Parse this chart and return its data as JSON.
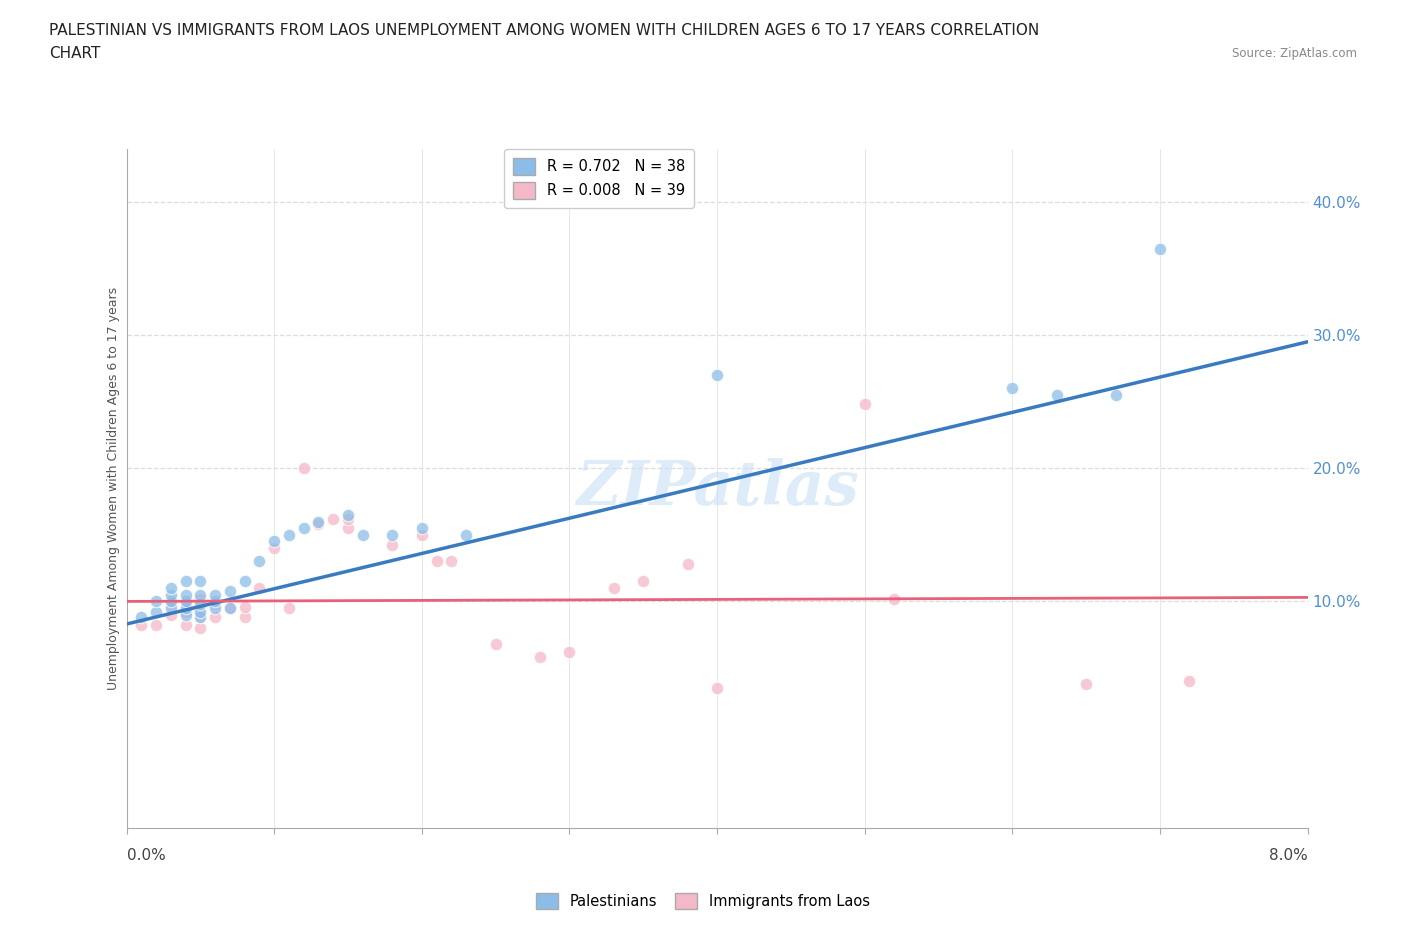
{
  "title_line1": "PALESTINIAN VS IMMIGRANTS FROM LAOS UNEMPLOYMENT AMONG WOMEN WITH CHILDREN AGES 6 TO 17 YEARS CORRELATION",
  "title_line2": "CHART",
  "source": "Source: ZipAtlas.com",
  "xlabel_start": "0.0%",
  "xlabel_end": "8.0%",
  "ylabel": "Unemployment Among Women with Children Ages 6 to 17 years",
  "ytick_labels": [
    "10.0%",
    "20.0%",
    "30.0%",
    "40.0%"
  ],
  "ytick_values": [
    0.1,
    0.2,
    0.3,
    0.4
  ],
  "xlim": [
    0.0,
    0.08
  ],
  "ylim": [
    -0.07,
    0.44
  ],
  "legend_blue_label": "R = 0.702   N = 38",
  "legend_pink_label": "R = 0.008   N = 39",
  "legend_blue_scatter_label": "Palestinians",
  "legend_pink_scatter_label": "Immigrants from Laos",
  "blue_color": "#8bbde8",
  "pink_color": "#f5b8c8",
  "trend_blue_color": "#3a7bbf",
  "trend_pink_color": "#e8607a",
  "ytick_color": "#5090d0",
  "watermark_text": "ZIPatlas",
  "blue_scatter_x": [
    0.001,
    0.002,
    0.002,
    0.003,
    0.003,
    0.003,
    0.003,
    0.004,
    0.004,
    0.004,
    0.004,
    0.004,
    0.005,
    0.005,
    0.005,
    0.005,
    0.005,
    0.006,
    0.006,
    0.006,
    0.007,
    0.007,
    0.008,
    0.009,
    0.01,
    0.011,
    0.012,
    0.013,
    0.015,
    0.016,
    0.018,
    0.02,
    0.023,
    0.04,
    0.06,
    0.063,
    0.067,
    0.07
  ],
  "blue_scatter_y": [
    0.088,
    0.092,
    0.1,
    0.095,
    0.1,
    0.105,
    0.11,
    0.09,
    0.095,
    0.1,
    0.105,
    0.115,
    0.088,
    0.092,
    0.098,
    0.105,
    0.115,
    0.095,
    0.1,
    0.105,
    0.095,
    0.108,
    0.115,
    0.13,
    0.145,
    0.15,
    0.155,
    0.16,
    0.165,
    0.15,
    0.15,
    0.155,
    0.15,
    0.27,
    0.26,
    0.255,
    0.255,
    0.365
  ],
  "pink_scatter_x": [
    0.001,
    0.002,
    0.003,
    0.003,
    0.004,
    0.004,
    0.004,
    0.005,
    0.005,
    0.005,
    0.005,
    0.006,
    0.006,
    0.007,
    0.008,
    0.008,
    0.009,
    0.01,
    0.011,
    0.012,
    0.013,
    0.014,
    0.015,
    0.015,
    0.018,
    0.02,
    0.021,
    0.022,
    0.025,
    0.028,
    0.03,
    0.033,
    0.035,
    0.038,
    0.04,
    0.05,
    0.052,
    0.065,
    0.072
  ],
  "pink_scatter_y": [
    0.082,
    0.082,
    0.09,
    0.098,
    0.082,
    0.092,
    0.098,
    0.08,
    0.088,
    0.095,
    0.102,
    0.088,
    0.098,
    0.095,
    0.088,
    0.096,
    0.11,
    0.14,
    0.095,
    0.2,
    0.158,
    0.162,
    0.155,
    0.162,
    0.142,
    0.15,
    0.13,
    0.13,
    0.068,
    0.058,
    0.062,
    0.11,
    0.115,
    0.128,
    0.035,
    0.248,
    0.102,
    0.038,
    0.04
  ],
  "blue_trend_x": [
    0.0,
    0.08
  ],
  "blue_trend_y": [
    0.083,
    0.295
  ],
  "pink_trend_x": [
    0.0,
    0.08
  ],
  "pink_trend_y": [
    0.1,
    0.103
  ],
  "background_color": "#ffffff",
  "grid_color": "#dddddd",
  "title_fontsize": 11,
  "axis_label_fontsize": 9,
  "tick_fontsize": 11
}
